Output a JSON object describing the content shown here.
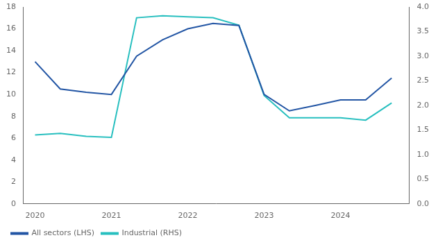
{
  "chart_data": {
    "type": "line",
    "x": [
      2020.0,
      2020.33,
      2020.67,
      2021.0,
      2021.33,
      2021.67,
      2022.0,
      2022.33,
      2022.67,
      2023.0,
      2023.33,
      2023.67,
      2024.0,
      2024.33,
      2024.67
    ],
    "series": [
      {
        "name": "All sectors (LHS)",
        "color": "#2255a4",
        "values": [
          13.0,
          10.5,
          10.2,
          10.0,
          13.5,
          15.0,
          16.0,
          16.5,
          16.3,
          10.0,
          8.5,
          9.0,
          9.5,
          9.5,
          11.5
        ]
      },
      {
        "name": "Industrial (RHS)",
        "color": "#27bfbf",
        "axis": "y2",
        "values": [
          1.4,
          1.43,
          1.37,
          1.35,
          3.78,
          3.82,
          3.8,
          3.78,
          3.63,
          2.2,
          1.75,
          1.75,
          1.75,
          1.7,
          2.05
        ]
      }
    ],
    "xlim": [
      2019.85,
      2024.9
    ],
    "xticks": [
      2020,
      2021,
      2022,
      2023,
      2024
    ],
    "ylim": [
      0,
      18
    ],
    "yticks": [
      0,
      2,
      4,
      6,
      8,
      10,
      12,
      14,
      16,
      18
    ],
    "y2lim": [
      0.0,
      4.0
    ],
    "y2ticks": [
      {
        "value": 0,
        "label": "0.0"
      },
      0.5,
      {
        "value": 1,
        "label": "1.0"
      },
      1.5,
      {
        "value": 2,
        "label": "2.0"
      },
      2.5,
      {
        "value": 3,
        "label": "3.0"
      },
      3.5,
      {
        "value": 4,
        "label": "4.0"
      }
    ],
    "grid": false,
    "legend": "lower left"
  }
}
